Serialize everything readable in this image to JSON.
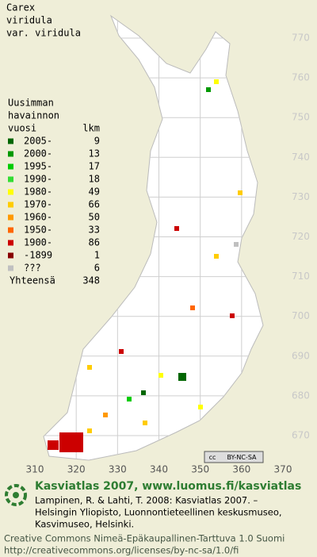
{
  "title": [
    "Carex",
    "viridula",
    "var. viridula"
  ],
  "legend": {
    "heading": [
      "Uusimman",
      "havainnon",
      "vuosi"
    ],
    "count_heading": "lkm",
    "rows": [
      {
        "period": "2005-",
        "count": 9,
        "color": "#006600"
      },
      {
        "period": "2000-",
        "count": 13,
        "color": "#009900"
      },
      {
        "period": "1995-",
        "count": 17,
        "color": "#00cc00"
      },
      {
        "period": "1990-",
        "count": 18,
        "color": "#33dd33"
      },
      {
        "period": "1980-",
        "count": 49,
        "color": "#ffff00"
      },
      {
        "period": "1970-",
        "count": 66,
        "color": "#ffcc00"
      },
      {
        "period": "1960-",
        "count": 50,
        "color": "#ff9900"
      },
      {
        "period": "1950-",
        "count": 33,
        "color": "#ff6600"
      },
      {
        "period": "1900-",
        "count": 86,
        "color": "#cc0000"
      },
      {
        "period": "-1899",
        "count": 1,
        "color": "#880000"
      },
      {
        "period": "???",
        "count": 6,
        "color": "#c0c0c0"
      }
    ],
    "total_label": "Yhteensä",
    "total": 348
  },
  "map": {
    "yticks": [
      770,
      760,
      750,
      740,
      730,
      720,
      710,
      700,
      690,
      680,
      670
    ],
    "xticks": [
      310,
      320,
      330,
      340,
      350,
      360,
      370
    ],
    "license_badge": [
      "cc",
      "BY-NC-SA"
    ]
  },
  "footer": {
    "brand": "Kasviatlas 2007, www.luomus.fi/kasviatlas",
    "citation": [
      "Lampinen, R. & Lahti, T. 2008: Kasviatlas 2007. –",
      "Helsingin Yliopisto, Luonnontieteellinen keskusmuseo,",
      "Kasvimuseo, Helsinki."
    ],
    "license": [
      "Creative Commons Nimeä-Epäkaupallinen-Tarttuva 1.0 Suomi",
      "http://creativecommons.org/licenses/by-nc-sa/1.0/fi"
    ]
  }
}
